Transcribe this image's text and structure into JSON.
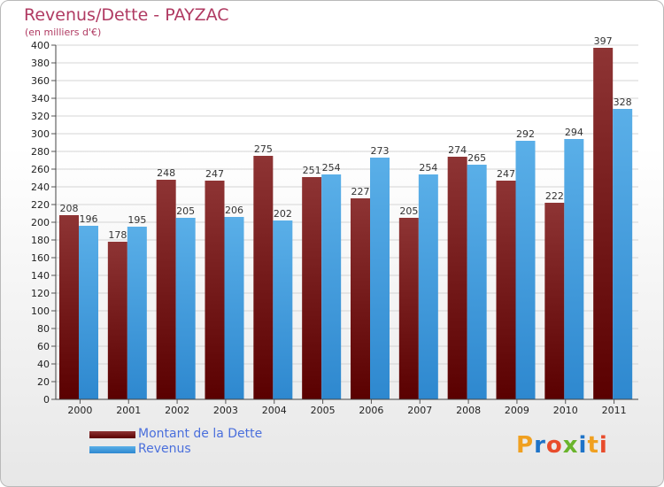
{
  "header": {
    "title": "Revenus/Dette - PAYZAC",
    "unit": "(en milliers d'€)"
  },
  "colors": {
    "debt_top": "#8e3434",
    "debt_bottom": "#5a0000",
    "revenue_top": "#5aafe8",
    "revenue_bottom": "#2e88cf",
    "title": "#b03a62",
    "legend_text": "#4a6fdc"
  },
  "chart_data": {
    "type": "bar",
    "title": "Revenus/Dette - PAYZAC",
    "ylabel": "(en milliers d'€)",
    "xlabel": "",
    "categories": [
      "2000",
      "2001",
      "2002",
      "2003",
      "2004",
      "2005",
      "2006",
      "2007",
      "2008",
      "2009",
      "2010",
      "2011"
    ],
    "series": [
      {
        "name": "Montant de la Dette",
        "values": [
          208,
          178,
          248,
          247,
          275,
          251,
          227,
          205,
          274,
          247,
          222,
          397
        ]
      },
      {
        "name": "Revenus",
        "values": [
          196,
          195,
          205,
          206,
          202,
          254,
          273,
          254,
          265,
          292,
          294,
          328
        ]
      }
    ],
    "ylim": [
      0,
      400
    ],
    "ytick_step": 20,
    "grid": true,
    "legend_position": "bottom-left"
  },
  "legend": {
    "items": [
      {
        "label": "Montant de la Dette"
      },
      {
        "label": "Revenus"
      }
    ]
  },
  "logo": {
    "text": "Proxiti",
    "letter_colors": [
      "#f0a020",
      "#1e73c8",
      "#e84c2c",
      "#6ab42c",
      "#1e73c8",
      "#f0a020",
      "#e84c2c"
    ]
  }
}
